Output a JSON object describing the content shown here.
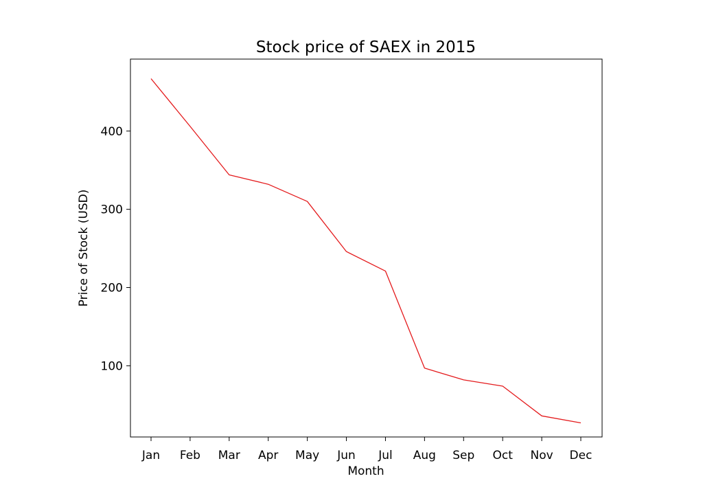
{
  "chart_data": {
    "type": "line",
    "title": "Stock price of SAEX in 2015",
    "xlabel": "Month",
    "ylabel": "Price of Stock (USD)",
    "categories": [
      "Jan",
      "Feb",
      "Mar",
      "Apr",
      "May",
      "Jun",
      "Jul",
      "Aug",
      "Sep",
      "Oct",
      "Nov",
      "Dec"
    ],
    "series": [
      {
        "values": [
          467,
          406,
          344,
          332,
          310,
          246,
          221,
          97,
          82,
          74,
          36,
          27
        ],
        "color": "#e41a1c"
      }
    ],
    "ylim": [
      9,
      492
    ],
    "yticks": [
      100,
      200,
      300,
      400
    ],
    "grid": false,
    "legend": "none"
  }
}
